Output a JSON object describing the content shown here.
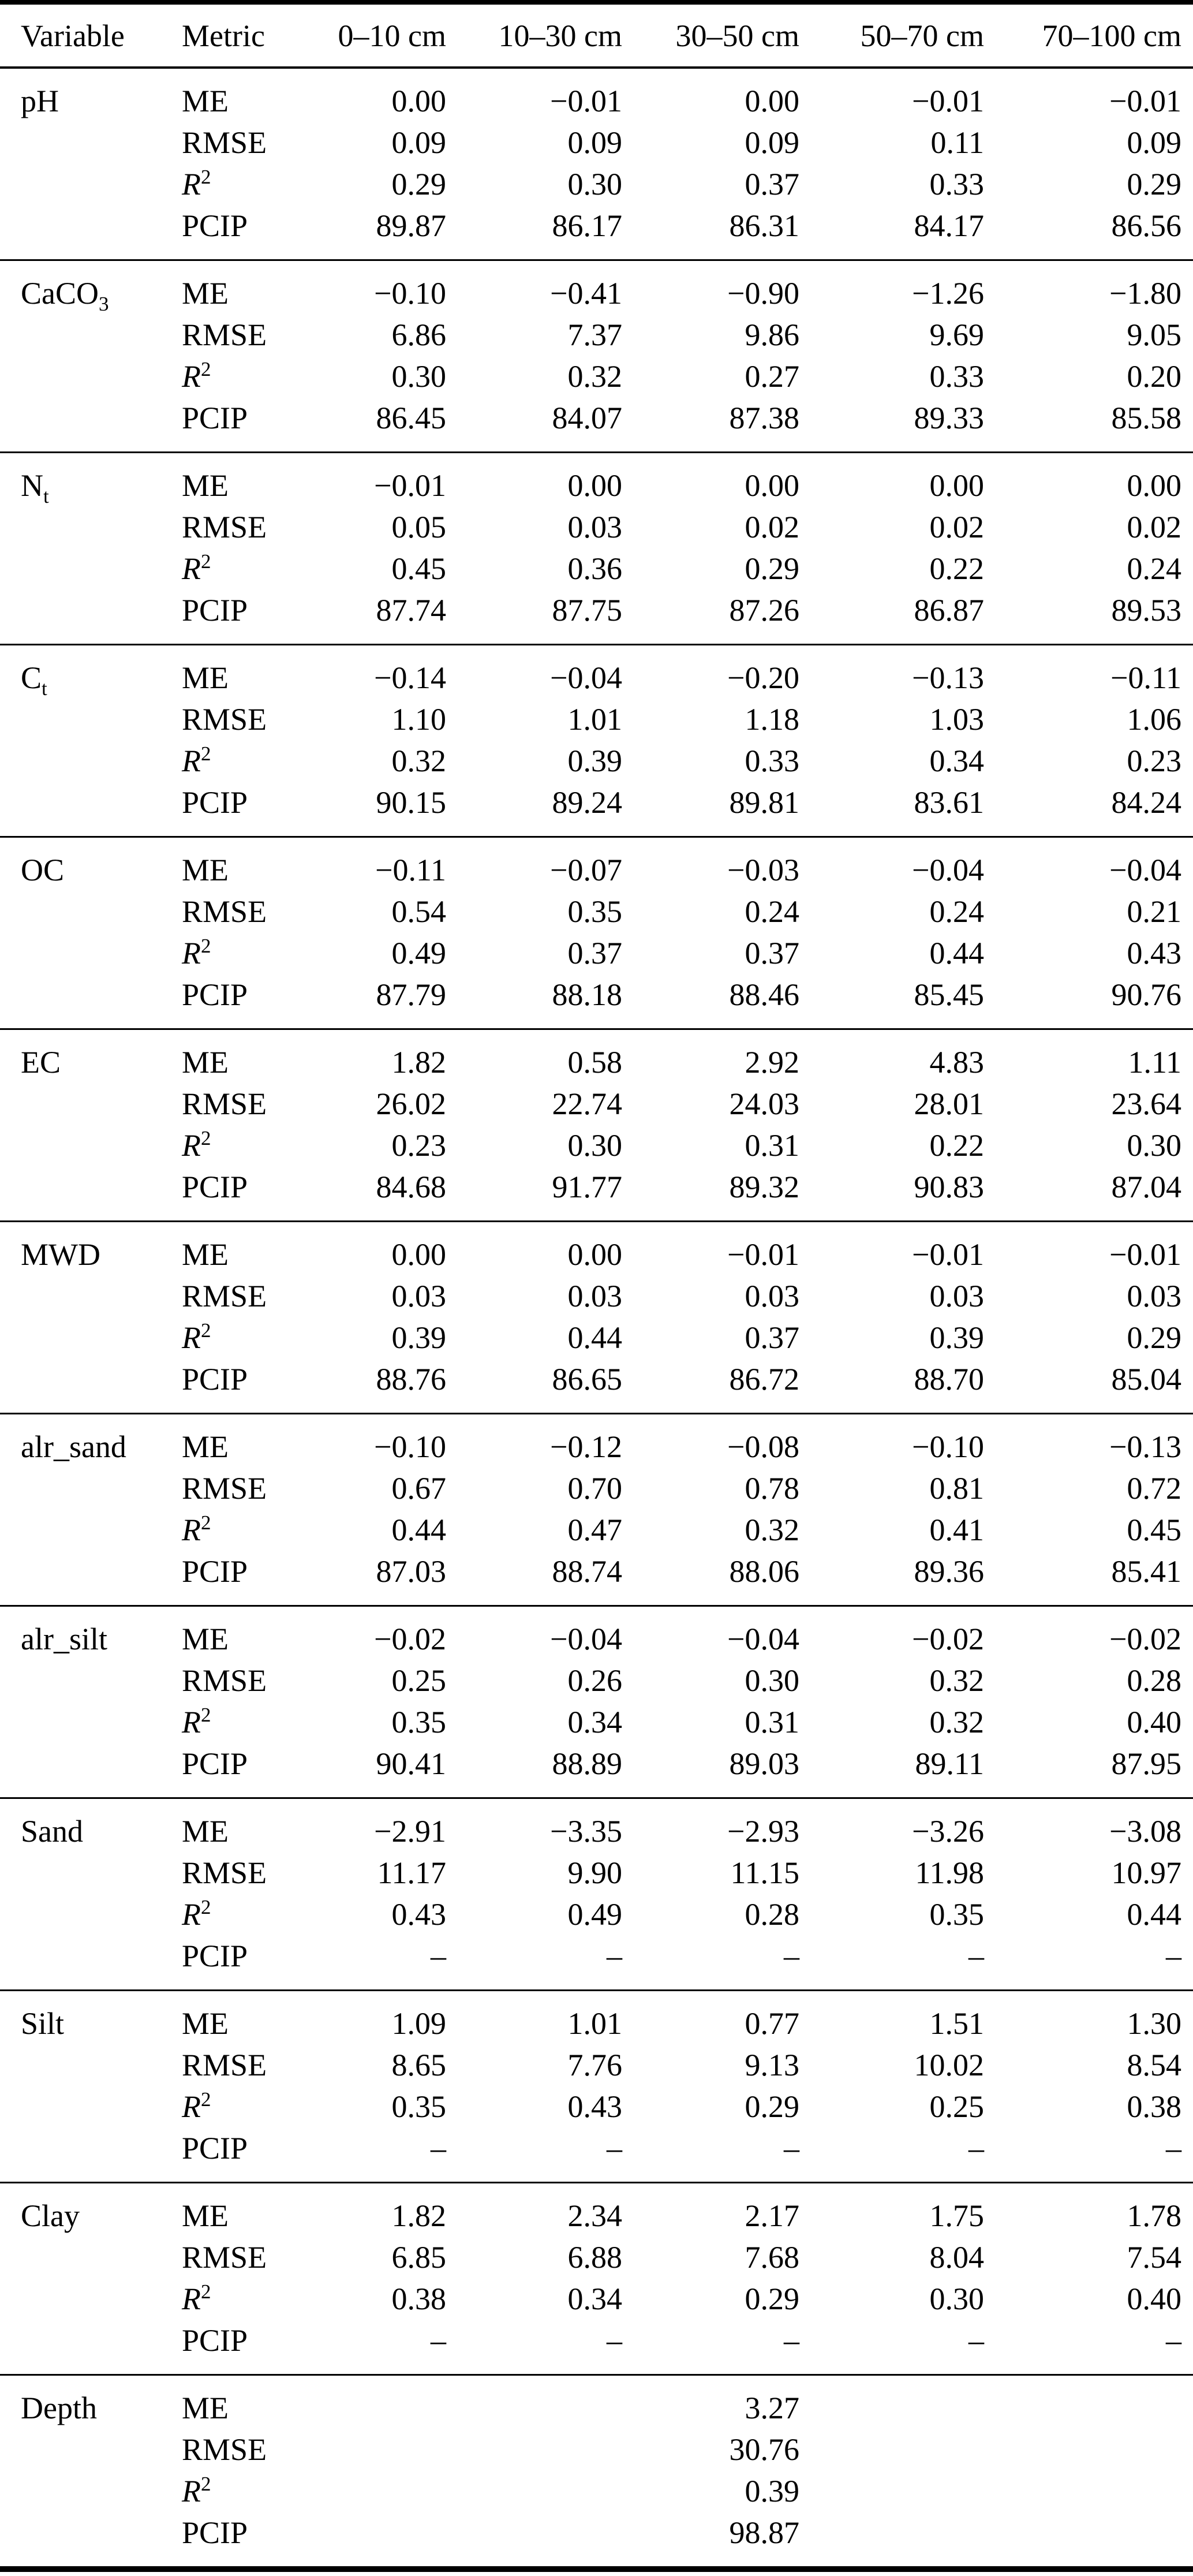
{
  "table": {
    "headers": [
      "Variable",
      "Metric",
      "0–10 cm",
      "10–30 cm",
      "30–50 cm",
      "50–70 cm",
      "70–100 cm"
    ],
    "rows": [
      {
        "id": "ph",
        "variable": {
          "base": "pH"
        },
        "metrics": [
          {
            "label": {
              "base": "ME"
            },
            "values": [
              "0.00",
              "−0.01",
              "0.00",
              "−0.01",
              "−0.01"
            ]
          },
          {
            "label": {
              "base": "RMSE"
            },
            "values": [
              "0.09",
              "0.09",
              "0.09",
              "0.11",
              "0.09"
            ]
          },
          {
            "label": {
              "base": "R",
              "sup": "2",
              "italic": true
            },
            "values": [
              "0.29",
              "0.30",
              "0.37",
              "0.33",
              "0.29"
            ]
          },
          {
            "label": {
              "base": "PCIP"
            },
            "values": [
              "89.87",
              "86.17",
              "86.31",
              "84.17",
              "86.56"
            ]
          }
        ]
      },
      {
        "id": "caco3",
        "variable": {
          "base": "CaCO",
          "sub": "3"
        },
        "metrics": [
          {
            "label": {
              "base": "ME"
            },
            "values": [
              "−0.10",
              "−0.41",
              "−0.90",
              "−1.26",
              "−1.80"
            ]
          },
          {
            "label": {
              "base": "RMSE"
            },
            "values": [
              "6.86",
              "7.37",
              "9.86",
              "9.69",
              "9.05"
            ]
          },
          {
            "label": {
              "base": "R",
              "sup": "2",
              "italic": true
            },
            "values": [
              "0.30",
              "0.32",
              "0.27",
              "0.33",
              "0.20"
            ]
          },
          {
            "label": {
              "base": "PCIP"
            },
            "values": [
              "86.45",
              "84.07",
              "87.38",
              "89.33",
              "85.58"
            ]
          }
        ]
      },
      {
        "id": "nt",
        "variable": {
          "base": "N",
          "sub": "t"
        },
        "metrics": [
          {
            "label": {
              "base": "ME"
            },
            "values": [
              "−0.01",
              "0.00",
              "0.00",
              "0.00",
              "0.00"
            ]
          },
          {
            "label": {
              "base": "RMSE"
            },
            "values": [
              "0.05",
              "0.03",
              "0.02",
              "0.02",
              "0.02"
            ]
          },
          {
            "label": {
              "base": "R",
              "sup": "2",
              "italic": true
            },
            "values": [
              "0.45",
              "0.36",
              "0.29",
              "0.22",
              "0.24"
            ]
          },
          {
            "label": {
              "base": "PCIP"
            },
            "values": [
              "87.74",
              "87.75",
              "87.26",
              "86.87",
              "89.53"
            ]
          }
        ]
      },
      {
        "id": "ct",
        "variable": {
          "base": "C",
          "sub": "t"
        },
        "metrics": [
          {
            "label": {
              "base": "ME"
            },
            "values": [
              "−0.14",
              "−0.04",
              "−0.20",
              "−0.13",
              "−0.11"
            ]
          },
          {
            "label": {
              "base": "RMSE"
            },
            "values": [
              "1.10",
              "1.01",
              "1.18",
              "1.03",
              "1.06"
            ]
          },
          {
            "label": {
              "base": "R",
              "sup": "2",
              "italic": true
            },
            "values": [
              "0.32",
              "0.39",
              "0.33",
              "0.34",
              "0.23"
            ]
          },
          {
            "label": {
              "base": "PCIP"
            },
            "values": [
              "90.15",
              "89.24",
              "89.81",
              "83.61",
              "84.24"
            ]
          }
        ]
      },
      {
        "id": "oc",
        "variable": {
          "base": "OC"
        },
        "metrics": [
          {
            "label": {
              "base": "ME"
            },
            "values": [
              "−0.11",
              "−0.07",
              "−0.03",
              "−0.04",
              "−0.04"
            ]
          },
          {
            "label": {
              "base": "RMSE"
            },
            "values": [
              "0.54",
              "0.35",
              "0.24",
              "0.24",
              "0.21"
            ]
          },
          {
            "label": {
              "base": "R",
              "sup": "2",
              "italic": true
            },
            "values": [
              "0.49",
              "0.37",
              "0.37",
              "0.44",
              "0.43"
            ]
          },
          {
            "label": {
              "base": "PCIP"
            },
            "values": [
              "87.79",
              "88.18",
              "88.46",
              "85.45",
              "90.76"
            ]
          }
        ]
      },
      {
        "id": "ec",
        "variable": {
          "base": "EC"
        },
        "metrics": [
          {
            "label": {
              "base": "ME"
            },
            "values": [
              "1.82",
              "0.58",
              "2.92",
              "4.83",
              "1.11"
            ]
          },
          {
            "label": {
              "base": "RMSE"
            },
            "values": [
              "26.02",
              "22.74",
              "24.03",
              "28.01",
              "23.64"
            ]
          },
          {
            "label": {
              "base": "R",
              "sup": "2",
              "italic": true
            },
            "values": [
              "0.23",
              "0.30",
              "0.31",
              "0.22",
              "0.30"
            ]
          },
          {
            "label": {
              "base": "PCIP"
            },
            "values": [
              "84.68",
              "91.77",
              "89.32",
              "90.83",
              "87.04"
            ]
          }
        ]
      },
      {
        "id": "mwd",
        "variable": {
          "base": "MWD"
        },
        "metrics": [
          {
            "label": {
              "base": "ME"
            },
            "values": [
              "0.00",
              "0.00",
              "−0.01",
              "−0.01",
              "−0.01"
            ]
          },
          {
            "label": {
              "base": "RMSE"
            },
            "values": [
              "0.03",
              "0.03",
              "0.03",
              "0.03",
              "0.03"
            ]
          },
          {
            "label": {
              "base": "R",
              "sup": "2",
              "italic": true
            },
            "values": [
              "0.39",
              "0.44",
              "0.37",
              "0.39",
              "0.29"
            ]
          },
          {
            "label": {
              "base": "PCIP"
            },
            "values": [
              "88.76",
              "86.65",
              "86.72",
              "88.70",
              "85.04"
            ]
          }
        ]
      },
      {
        "id": "alr-sand",
        "variable": {
          "base": "alr_sand"
        },
        "metrics": [
          {
            "label": {
              "base": "ME"
            },
            "values": [
              "−0.10",
              "−0.12",
              "−0.08",
              "−0.10",
              "−0.13"
            ]
          },
          {
            "label": {
              "base": "RMSE"
            },
            "values": [
              "0.67",
              "0.70",
              "0.78",
              "0.81",
              "0.72"
            ]
          },
          {
            "label": {
              "base": "R",
              "sup": "2",
              "italic": true
            },
            "values": [
              "0.44",
              "0.47",
              "0.32",
              "0.41",
              "0.45"
            ]
          },
          {
            "label": {
              "base": "PCIP"
            },
            "values": [
              "87.03",
              "88.74",
              "88.06",
              "89.36",
              "85.41"
            ]
          }
        ]
      },
      {
        "id": "alr-silt",
        "variable": {
          "base": "alr_silt"
        },
        "metrics": [
          {
            "label": {
              "base": "ME"
            },
            "values": [
              "−0.02",
              "−0.04",
              "−0.04",
              "−0.02",
              "−0.02"
            ]
          },
          {
            "label": {
              "base": "RMSE"
            },
            "values": [
              "0.25",
              "0.26",
              "0.30",
              "0.32",
              "0.28"
            ]
          },
          {
            "label": {
              "base": "R",
              "sup": "2",
              "italic": true
            },
            "values": [
              "0.35",
              "0.34",
              "0.31",
              "0.32",
              "0.40"
            ]
          },
          {
            "label": {
              "base": "PCIP"
            },
            "values": [
              "90.41",
              "88.89",
              "89.03",
              "89.11",
              "87.95"
            ]
          }
        ]
      },
      {
        "id": "sand",
        "variable": {
          "base": "Sand"
        },
        "metrics": [
          {
            "label": {
              "base": "ME"
            },
            "values": [
              "−2.91",
              "−3.35",
              "−2.93",
              "−3.26",
              "−3.08"
            ]
          },
          {
            "label": {
              "base": "RMSE"
            },
            "values": [
              "11.17",
              "9.90",
              "11.15",
              "11.98",
              "10.97"
            ]
          },
          {
            "label": {
              "base": "R",
              "sup": "2",
              "italic": true
            },
            "values": [
              "0.43",
              "0.49",
              "0.28",
              "0.35",
              "0.44"
            ]
          },
          {
            "label": {
              "base": "PCIP"
            },
            "values": [
              "–",
              "–",
              "–",
              "–",
              "–"
            ]
          }
        ]
      },
      {
        "id": "silt",
        "variable": {
          "base": "Silt"
        },
        "metrics": [
          {
            "label": {
              "base": "ME"
            },
            "values": [
              "1.09",
              "1.01",
              "0.77",
              "1.51",
              "1.30"
            ]
          },
          {
            "label": {
              "base": "RMSE"
            },
            "values": [
              "8.65",
              "7.76",
              "9.13",
              "10.02",
              "8.54"
            ]
          },
          {
            "label": {
              "base": "R",
              "sup": "2",
              "italic": true
            },
            "values": [
              "0.35",
              "0.43",
              "0.29",
              "0.25",
              "0.38"
            ]
          },
          {
            "label": {
              "base": "PCIP"
            },
            "values": [
              "–",
              "–",
              "–",
              "–",
              "–"
            ]
          }
        ]
      },
      {
        "id": "clay",
        "variable": {
          "base": "Clay"
        },
        "metrics": [
          {
            "label": {
              "base": "ME"
            },
            "values": [
              "1.82",
              "2.34",
              "2.17",
              "1.75",
              "1.78"
            ]
          },
          {
            "label": {
              "base": "RMSE"
            },
            "values": [
              "6.85",
              "6.88",
              "7.68",
              "8.04",
              "7.54"
            ]
          },
          {
            "label": {
              "base": "R",
              "sup": "2",
              "italic": true
            },
            "values": [
              "0.38",
              "0.34",
              "0.29",
              "0.30",
              "0.40"
            ]
          },
          {
            "label": {
              "base": "PCIP"
            },
            "values": [
              "–",
              "–",
              "–",
              "–",
              "–"
            ]
          }
        ]
      },
      {
        "id": "depth",
        "variable": {
          "base": "Depth"
        },
        "metrics": [
          {
            "label": {
              "base": "ME"
            },
            "values": [
              "",
              "",
              "3.27",
              "",
              ""
            ]
          },
          {
            "label": {
              "base": "RMSE"
            },
            "values": [
              "",
              "",
              "30.76",
              "",
              ""
            ]
          },
          {
            "label": {
              "base": "R",
              "sup": "2",
              "italic": true
            },
            "values": [
              "",
              "",
              "0.39",
              "",
              ""
            ]
          },
          {
            "label": {
              "base": "PCIP"
            },
            "values": [
              "",
              "",
              "98.87",
              "",
              ""
            ]
          }
        ]
      }
    ]
  }
}
